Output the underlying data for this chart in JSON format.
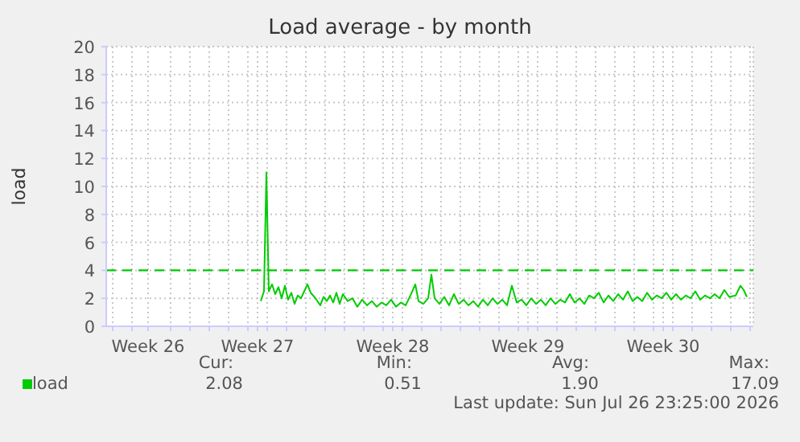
{
  "chart_data": {
    "type": "line",
    "title": "Load average - by month",
    "ylabel": "load",
    "xlim": [
      "2026-06-23T16:00",
      "2026-07-27T04:00"
    ],
    "xticks": [
      {
        "value": "2026-06-24",
        "label": null
      },
      {
        "value": "2026-06-25",
        "label": null
      },
      {
        "value": "2026-06-25T20:00",
        "label": "Week 26"
      },
      {
        "value": "2026-06-27",
        "label": null
      },
      {
        "value": "2026-06-28",
        "label": null
      },
      {
        "value": "2026-06-29",
        "label": null
      },
      {
        "value": "2026-06-30",
        "label": null
      },
      {
        "value": "2026-07-01",
        "label": null
      },
      {
        "value": "2026-07-01T12:00",
        "label": "Week 27"
      },
      {
        "value": "2026-07-02",
        "label": null
      },
      {
        "value": "2026-07-03",
        "label": null
      },
      {
        "value": "2026-07-04",
        "label": null
      },
      {
        "value": "2026-07-05",
        "label": null
      },
      {
        "value": "2026-07-06",
        "label": null
      },
      {
        "value": "2026-07-07",
        "label": null
      },
      {
        "value": "2026-07-08",
        "label": null
      },
      {
        "value": "2026-07-08T12:00",
        "label": "Week 28"
      },
      {
        "value": "2026-07-09",
        "label": null
      },
      {
        "value": "2026-07-10",
        "label": null
      },
      {
        "value": "2026-07-11",
        "label": null
      },
      {
        "value": "2026-07-12",
        "label": null
      },
      {
        "value": "2026-07-13",
        "label": null
      },
      {
        "value": "2026-07-14",
        "label": null
      },
      {
        "value": "2026-07-15",
        "label": null
      },
      {
        "value": "2026-07-15T12:00",
        "label": "Week 29"
      },
      {
        "value": "2026-07-16",
        "label": null
      },
      {
        "value": "2026-07-17",
        "label": null
      },
      {
        "value": "2026-07-18",
        "label": null
      },
      {
        "value": "2026-07-19",
        "label": null
      },
      {
        "value": "2026-07-20",
        "label": null
      },
      {
        "value": "2026-07-21",
        "label": null
      },
      {
        "value": "2026-07-22",
        "label": null
      },
      {
        "value": "2026-07-22T12:00",
        "label": "Week 30"
      },
      {
        "value": "2026-07-23",
        "label": null
      },
      {
        "value": "2026-07-24",
        "label": null
      },
      {
        "value": "2026-07-25",
        "label": null
      },
      {
        "value": "2026-07-26",
        "label": null
      },
      {
        "value": "2026-07-27",
        "label": null
      }
    ],
    "ylim": [
      0,
      20
    ],
    "yticks": [
      0,
      2,
      4,
      6,
      8,
      10,
      12,
      14,
      16,
      18,
      20
    ],
    "grid": true,
    "legend": "bottom left",
    "ref_lines": [
      {
        "axis": "y",
        "value": 4,
        "color": "#00cc00",
        "line_style": "dashed"
      }
    ],
    "annotations": [
      "Cur:",
      "Min:",
      "Avg:",
      "Max:",
      "2.08",
      "0.51",
      "1.90",
      "17.09",
      "Last update: Sun Jul 26 23:25:00 2026"
    ],
    "series": [
      {
        "name": "load",
        "color": "#00cc00",
        "x": [
          "2026-07-01T16:00",
          "2026-07-01T20:00",
          "2026-07-01T23:00",
          "2026-07-02T02:00",
          "2026-07-02T06:00",
          "2026-07-02T10:00",
          "2026-07-02T14:00",
          "2026-07-02T18:00",
          "2026-07-02T22:00",
          "2026-07-03T02:00",
          "2026-07-03T06:00",
          "2026-07-03T10:00",
          "2026-07-03T14:00",
          "2026-07-03T18:00",
          "2026-07-03T22:00",
          "2026-07-04T02:00",
          "2026-07-04T06:00",
          "2026-07-04T12:00",
          "2026-07-04T18:00",
          "2026-07-04T22:00",
          "2026-07-05T02:00",
          "2026-07-05T06:00",
          "2026-07-05T10:00",
          "2026-07-05T14:00",
          "2026-07-05T18:00",
          "2026-07-05T22:00",
          "2026-07-06T04:00",
          "2026-07-06T10:00",
          "2026-07-06T16:00",
          "2026-07-06T22:00",
          "2026-07-07T04:00",
          "2026-07-07T10:00",
          "2026-07-07T16:00",
          "2026-07-07T22:00",
          "2026-07-08T04:00",
          "2026-07-08T10:00",
          "2026-07-08T16:00",
          "2026-07-08T22:00",
          "2026-07-09T04:00",
          "2026-07-09T10:00",
          "2026-07-09T16:00",
          "2026-07-09T20:00",
          "2026-07-10T02:00",
          "2026-07-10T08:00",
          "2026-07-10T12:00",
          "2026-07-10T16:00",
          "2026-07-10T22:00",
          "2026-07-11T04:00",
          "2026-07-11T10:00",
          "2026-07-11T16:00",
          "2026-07-11T22:00",
          "2026-07-12T04:00",
          "2026-07-12T10:00",
          "2026-07-12T16:00",
          "2026-07-12T22:00",
          "2026-07-13T04:00",
          "2026-07-13T10:00",
          "2026-07-13T16:00",
          "2026-07-13T22:00",
          "2026-07-14T04:00",
          "2026-07-14T10:00",
          "2026-07-14T16:00",
          "2026-07-14T22:00",
          "2026-07-15T04:00",
          "2026-07-15T10:00",
          "2026-07-15T16:00",
          "2026-07-15T22:00",
          "2026-07-16T04:00",
          "2026-07-16T10:00",
          "2026-07-16T16:00",
          "2026-07-16T22:00",
          "2026-07-17T04:00",
          "2026-07-17T10:00",
          "2026-07-17T16:00",
          "2026-07-17T22:00",
          "2026-07-18T04:00",
          "2026-07-18T10:00",
          "2026-07-18T16:00",
          "2026-07-18T22:00",
          "2026-07-19T04:00",
          "2026-07-19T10:00",
          "2026-07-19T16:00",
          "2026-07-19T22:00",
          "2026-07-20T04:00",
          "2026-07-20T10:00",
          "2026-07-20T16:00",
          "2026-07-20T22:00",
          "2026-07-21T04:00",
          "2026-07-21T10:00",
          "2026-07-21T16:00",
          "2026-07-21T22:00",
          "2026-07-22T04:00",
          "2026-07-22T10:00",
          "2026-07-22T16:00",
          "2026-07-22T22:00",
          "2026-07-23T04:00",
          "2026-07-23T10:00",
          "2026-07-23T16:00",
          "2026-07-23T22:00",
          "2026-07-24T04:00",
          "2026-07-24T10:00",
          "2026-07-24T16:00",
          "2026-07-24T22:00",
          "2026-07-25T04:00",
          "2026-07-25T10:00",
          "2026-07-25T16:00",
          "2026-07-25T22:00",
          "2026-07-26T06:00",
          "2026-07-26T12:00",
          "2026-07-26T16:00",
          "2026-07-26T20:00"
        ],
        "values": [
          1.8,
          2.5,
          11,
          2.5,
          3.0,
          2.3,
          2.8,
          2.0,
          2.9,
          1.9,
          2.4,
          1.6,
          2.2,
          2.0,
          2.5,
          3.0,
          2.4,
          2.0,
          1.5,
          2.1,
          1.8,
          2.2,
          1.7,
          2.4,
          1.6,
          2.3,
          1.8,
          2.0,
          1.4,
          1.9,
          1.5,
          1.8,
          1.4,
          1.7,
          1.5,
          1.9,
          1.4,
          1.7,
          1.5,
          2.2,
          3.0,
          1.8,
          1.6,
          2.0,
          3.7,
          2.0,
          1.6,
          2.1,
          1.5,
          2.3,
          1.6,
          1.9,
          1.5,
          1.8,
          1.4,
          1.9,
          1.5,
          2.0,
          1.6,
          1.9,
          1.5,
          2.9,
          1.7,
          1.9,
          1.5,
          2.0,
          1.6,
          1.9,
          1.5,
          2.0,
          1.6,
          1.9,
          1.7,
          2.3,
          1.7,
          2.0,
          1.6,
          2.2,
          2.0,
          2.4,
          1.7,
          2.2,
          1.8,
          2.3,
          1.9,
          2.5,
          1.8,
          2.1,
          1.8,
          2.4,
          1.9,
          2.2,
          2.0,
          2.4,
          1.9,
          2.3,
          1.9,
          2.2,
          2.0,
          2.5,
          1.9,
          2.2,
          2.0,
          2.3,
          2.0,
          2.6,
          2.1,
          2.2,
          2.9,
          2.6,
          2.1
        ]
      }
    ]
  }
}
